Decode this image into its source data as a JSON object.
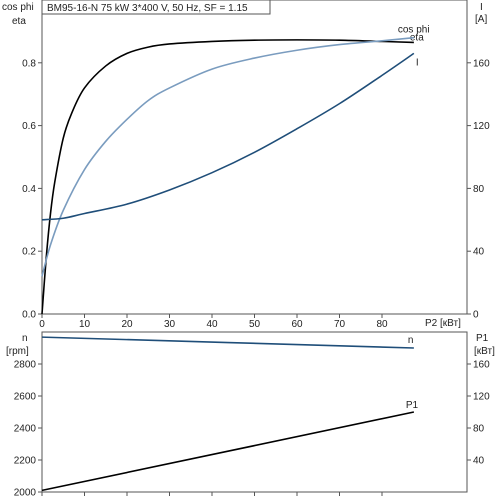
{
  "chart_data": [
    {
      "type": "line",
      "title": "BM95-16-N   75 kW   3*400 V, 50 Hz, SF = 1.15",
      "xlabel": "P2 [кВт]",
      "ylabel_left": [
        "cos phi",
        "eta"
      ],
      "ylabel_right": [
        "I",
        "[A]"
      ],
      "xlim": [
        0,
        100
      ],
      "ylim_left": [
        0,
        1
      ],
      "ylim_right": [
        0,
        200
      ],
      "x_ticks": [
        "0",
        "10",
        "20",
        "30",
        "40",
        "50",
        "60",
        "70",
        "80"
      ],
      "y_ticks_left": [
        "0.0",
        "0.2",
        "0.4",
        "0.6",
        "0.8"
      ],
      "y_ticks_right": [
        "0",
        "40",
        "80",
        "120",
        "160"
      ],
      "grid": false,
      "series": [
        {
          "name": "eta",
          "axis": "left",
          "color": "#000000",
          "x": [
            0,
            1,
            2,
            3,
            5,
            7,
            10,
            15,
            20,
            25,
            30,
            40,
            50,
            60,
            70,
            80,
            87.5
          ],
          "y": [
            0.0,
            0.18,
            0.32,
            0.42,
            0.56,
            0.64,
            0.72,
            0.79,
            0.83,
            0.85,
            0.86,
            0.868,
            0.872,
            0.873,
            0.872,
            0.868,
            0.865
          ]
        },
        {
          "name": "cos phi",
          "axis": "left",
          "color": "#7a9cbf",
          "x": [
            0,
            2,
            5,
            10,
            15,
            20,
            25,
            30,
            40,
            50,
            60,
            70,
            80,
            87.5
          ],
          "y": [
            0.12,
            0.22,
            0.33,
            0.46,
            0.55,
            0.62,
            0.68,
            0.72,
            0.78,
            0.815,
            0.84,
            0.858,
            0.87,
            0.88
          ]
        },
        {
          "name": "I",
          "axis": "right",
          "color": "#1f4e79",
          "x": [
            0,
            5,
            10,
            20,
            30,
            40,
            50,
            60,
            70,
            80,
            87.5
          ],
          "y": [
            60,
            61,
            64,
            70,
            79,
            90,
            103,
            118,
            134,
            152,
            166
          ]
        }
      ]
    },
    {
      "type": "line",
      "xlabel": "",
      "ylabel_left": [
        "n",
        "[rpm]"
      ],
      "ylabel_right": [
        "P1",
        "[кВт]"
      ],
      "xlim": [
        0,
        100
      ],
      "ylim_left": [
        2000,
        3000
      ],
      "ylim_right": [
        0,
        200
      ],
      "y_ticks_left": [
        "2000",
        "2200",
        "2400",
        "2600",
        "2800"
      ],
      "y_ticks_right": [
        "40",
        "80",
        "120",
        "160"
      ],
      "grid": false,
      "series": [
        {
          "name": "n",
          "axis": "left",
          "color": "#1f4e79",
          "x": [
            0,
            87.5
          ],
          "y": [
            2968,
            2900
          ]
        },
        {
          "name": "P1",
          "axis": "right",
          "color": "#000000",
          "x": [
            0,
            87.5
          ],
          "y": [
            2,
            100
          ]
        }
      ]
    }
  ]
}
